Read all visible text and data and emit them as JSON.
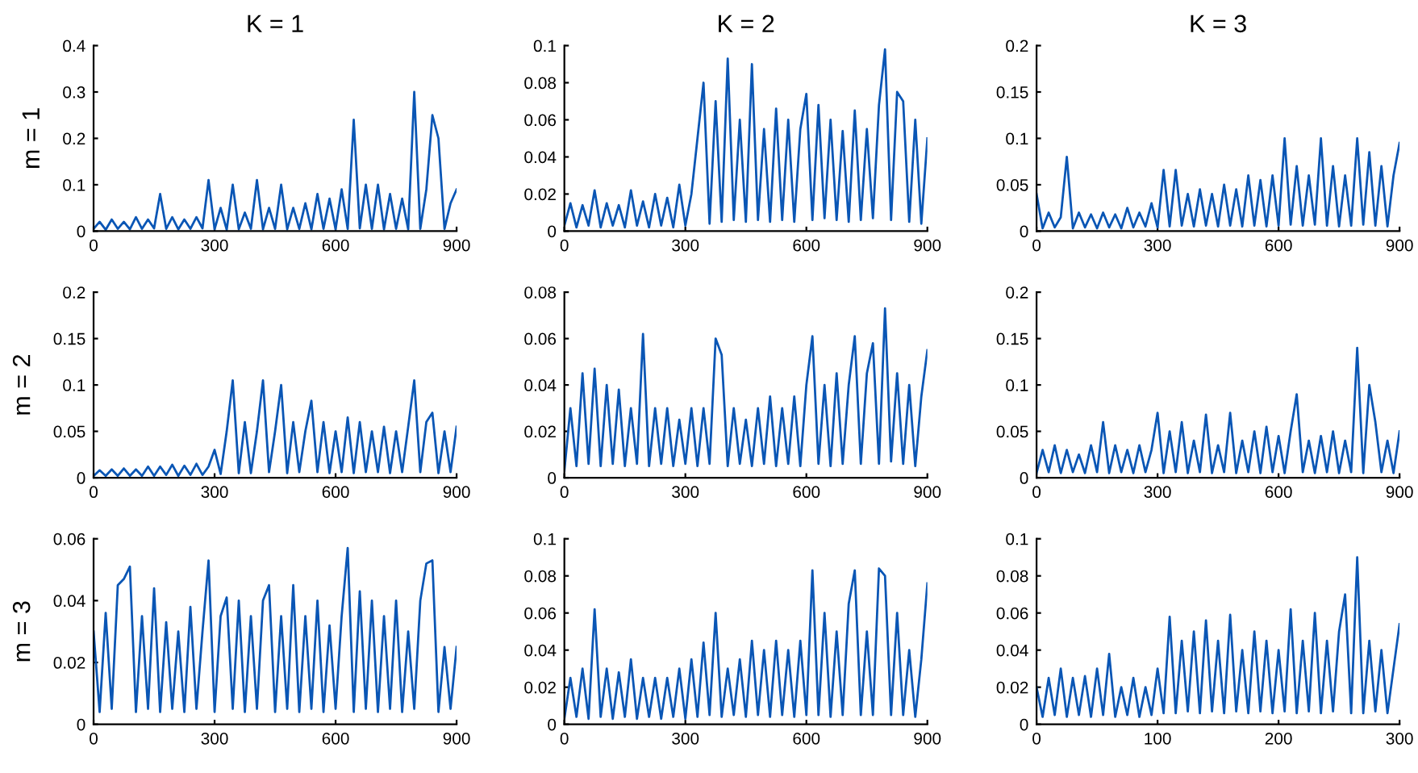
{
  "chart_data": [
    {
      "type": "line",
      "title": "K = 1",
      "ylabel": "m = 1",
      "xlim": [
        0,
        900
      ],
      "xticks": [
        0,
        300,
        600,
        900
      ],
      "ylim": [
        0,
        0.4
      ],
      "yticks": [
        0,
        0.1,
        0.2,
        0.3,
        0.4
      ],
      "x": [
        0,
        15,
        30,
        45,
        60,
        75,
        90,
        105,
        120,
        135,
        150,
        165,
        180,
        195,
        210,
        225,
        240,
        255,
        270,
        285,
        300,
        315,
        330,
        345,
        360,
        375,
        390,
        405,
        420,
        435,
        450,
        465,
        480,
        495,
        510,
        525,
        540,
        555,
        570,
        585,
        600,
        615,
        630,
        645,
        660,
        675,
        690,
        705,
        720,
        735,
        750,
        765,
        780,
        795,
        810,
        825,
        840,
        855,
        870,
        885,
        900
      ],
      "series": [
        {
          "color": "#0a56b5",
          "values": [
            0.005,
            0.02,
            0.003,
            0.025,
            0.005,
            0.02,
            0.004,
            0.03,
            0.005,
            0.025,
            0.006,
            0.08,
            0.005,
            0.03,
            0.004,
            0.025,
            0.005,
            0.03,
            0.006,
            0.11,
            0.004,
            0.05,
            0.003,
            0.1,
            0.004,
            0.04,
            0.005,
            0.11,
            0.004,
            0.05,
            0.005,
            0.1,
            0.004,
            0.05,
            0.005,
            0.06,
            0.004,
            0.08,
            0.005,
            0.07,
            0.004,
            0.09,
            0.005,
            0.24,
            0.006,
            0.1,
            0.005,
            0.1,
            0.004,
            0.08,
            0.005,
            0.07,
            0.004,
            0.3,
            0.005,
            0.09,
            0.25,
            0.2,
            0.005,
            0.06,
            0.09
          ]
        }
      ]
    },
    {
      "type": "line",
      "title": "K = 2",
      "xlim": [
        0,
        900
      ],
      "xticks": [
        0,
        300,
        600,
        900
      ],
      "ylim": [
        0,
        0.1
      ],
      "yticks": [
        0,
        0.02,
        0.04,
        0.06,
        0.08,
        0.1
      ],
      "x": [
        0,
        15,
        30,
        45,
        60,
        75,
        90,
        105,
        120,
        135,
        150,
        165,
        180,
        195,
        210,
        225,
        240,
        255,
        270,
        285,
        300,
        315,
        330,
        345,
        360,
        375,
        390,
        405,
        420,
        435,
        450,
        465,
        480,
        495,
        510,
        525,
        540,
        555,
        570,
        585,
        600,
        615,
        630,
        645,
        660,
        675,
        690,
        705,
        720,
        735,
        750,
        765,
        780,
        795,
        810,
        825,
        840,
        855,
        870,
        885,
        900
      ],
      "series": [
        {
          "color": "#0a56b5",
          "values": [
            0.003,
            0.015,
            0.002,
            0.014,
            0.003,
            0.022,
            0.002,
            0.015,
            0.003,
            0.014,
            0.002,
            0.022,
            0.003,
            0.016,
            0.002,
            0.02,
            0.003,
            0.018,
            0.002,
            0.025,
            0.003,
            0.02,
            0.05,
            0.08,
            0.004,
            0.07,
            0.005,
            0.093,
            0.006,
            0.06,
            0.005,
            0.09,
            0.006,
            0.055,
            0.005,
            0.066,
            0.006,
            0.06,
            0.005,
            0.055,
            0.074,
            0.006,
            0.068,
            0.007,
            0.06,
            0.006,
            0.054,
            0.005,
            0.065,
            0.006,
            0.055,
            0.007,
            0.068,
            0.098,
            0.006,
            0.075,
            0.07,
            0.005,
            0.06,
            0.004,
            0.05
          ]
        }
      ]
    },
    {
      "type": "line",
      "title": "K = 3",
      "xlim": [
        0,
        900
      ],
      "xticks": [
        0,
        300,
        600,
        900
      ],
      "ylim": [
        0,
        0.2
      ],
      "yticks": [
        0,
        0.05,
        0.1,
        0.15,
        0.2
      ],
      "x": [
        0,
        15,
        30,
        45,
        60,
        75,
        90,
        105,
        120,
        135,
        150,
        165,
        180,
        195,
        210,
        225,
        240,
        255,
        270,
        285,
        300,
        315,
        330,
        345,
        360,
        375,
        390,
        405,
        420,
        435,
        450,
        465,
        480,
        495,
        510,
        525,
        540,
        555,
        570,
        585,
        600,
        615,
        630,
        645,
        660,
        675,
        690,
        705,
        720,
        735,
        750,
        765,
        780,
        795,
        810,
        825,
        840,
        855,
        870,
        885,
        900
      ],
      "series": [
        {
          "color": "#0a56b5",
          "values": [
            0.04,
            0.003,
            0.02,
            0.004,
            0.015,
            0.08,
            0.003,
            0.02,
            0.004,
            0.018,
            0.003,
            0.02,
            0.004,
            0.018,
            0.003,
            0.025,
            0.004,
            0.02,
            0.005,
            0.03,
            0.004,
            0.066,
            0.005,
            0.066,
            0.006,
            0.04,
            0.005,
            0.045,
            0.006,
            0.04,
            0.005,
            0.05,
            0.006,
            0.045,
            0.005,
            0.06,
            0.006,
            0.055,
            0.005,
            0.06,
            0.006,
            0.1,
            0.007,
            0.07,
            0.006,
            0.06,
            0.007,
            0.1,
            0.006,
            0.07,
            0.005,
            0.06,
            0.006,
            0.1,
            0.007,
            0.085,
            0.006,
            0.07,
            0.005,
            0.06,
            0.095
          ]
        }
      ]
    },
    {
      "type": "line",
      "ylabel": "m = 2",
      "xlim": [
        0,
        900
      ],
      "xticks": [
        0,
        300,
        600,
        900
      ],
      "ylim": [
        0,
        0.2
      ],
      "yticks": [
        0,
        0.05,
        0.1,
        0.15,
        0.2
      ],
      "x": [
        0,
        15,
        30,
        45,
        60,
        75,
        90,
        105,
        120,
        135,
        150,
        165,
        180,
        195,
        210,
        225,
        240,
        255,
        270,
        285,
        300,
        315,
        330,
        345,
        360,
        375,
        390,
        405,
        420,
        435,
        450,
        465,
        480,
        495,
        510,
        525,
        540,
        555,
        570,
        585,
        600,
        615,
        630,
        645,
        660,
        675,
        690,
        705,
        720,
        735,
        750,
        765,
        780,
        795,
        810,
        825,
        840,
        855,
        870,
        885,
        900
      ],
      "series": [
        {
          "color": "#0a56b5",
          "values": [
            0.002,
            0.008,
            0.002,
            0.009,
            0.002,
            0.01,
            0.002,
            0.009,
            0.002,
            0.012,
            0.002,
            0.012,
            0.003,
            0.014,
            0.002,
            0.013,
            0.003,
            0.015,
            0.003,
            0.012,
            0.03,
            0.004,
            0.05,
            0.105,
            0.005,
            0.06,
            0.005,
            0.05,
            0.105,
            0.006,
            0.05,
            0.1,
            0.005,
            0.06,
            0.006,
            0.05,
            0.083,
            0.006,
            0.06,
            0.005,
            0.05,
            0.006,
            0.065,
            0.005,
            0.06,
            0.006,
            0.05,
            0.006,
            0.055,
            0.005,
            0.05,
            0.006,
            0.055,
            0.105,
            0.006,
            0.06,
            0.07,
            0.005,
            0.05,
            0.006,
            0.055
          ]
        }
      ]
    },
    {
      "type": "line",
      "xlim": [
        0,
        900
      ],
      "xticks": [
        0,
        300,
        600,
        900
      ],
      "ylim": [
        0,
        0.08
      ],
      "yticks": [
        0,
        0.02,
        0.04,
        0.06,
        0.08
      ],
      "x": [
        0,
        15,
        30,
        45,
        60,
        75,
        90,
        105,
        120,
        135,
        150,
        165,
        180,
        195,
        210,
        225,
        240,
        255,
        270,
        285,
        300,
        315,
        330,
        345,
        360,
        375,
        390,
        405,
        420,
        435,
        450,
        465,
        480,
        495,
        510,
        525,
        540,
        555,
        570,
        585,
        600,
        615,
        630,
        645,
        660,
        675,
        690,
        705,
        720,
        735,
        750,
        765,
        780,
        795,
        810,
        825,
        840,
        855,
        870,
        885,
        900
      ],
      "series": [
        {
          "color": "#0a56b5",
          "values": [
            0.003,
            0.03,
            0.005,
            0.045,
            0.006,
            0.047,
            0.005,
            0.04,
            0.006,
            0.038,
            0.005,
            0.03,
            0.006,
            0.062,
            0.005,
            0.03,
            0.006,
            0.03,
            0.005,
            0.025,
            0.006,
            0.03,
            0.005,
            0.03,
            0.006,
            0.06,
            0.053,
            0.005,
            0.03,
            0.006,
            0.025,
            0.005,
            0.03,
            0.006,
            0.035,
            0.005,
            0.03,
            0.006,
            0.035,
            0.005,
            0.04,
            0.061,
            0.006,
            0.04,
            0.005,
            0.045,
            0.006,
            0.04,
            0.061,
            0.006,
            0.045,
            0.058,
            0.006,
            0.073,
            0.007,
            0.045,
            0.006,
            0.04,
            0.005,
            0.035,
            0.055
          ]
        }
      ]
    },
    {
      "type": "line",
      "xlim": [
        0,
        900
      ],
      "xticks": [
        0,
        300,
        600,
        900
      ],
      "ylim": [
        0,
        0.2
      ],
      "yticks": [
        0,
        0.05,
        0.1,
        0.15,
        0.2
      ],
      "x": [
        0,
        15,
        30,
        45,
        60,
        75,
        90,
        105,
        120,
        135,
        150,
        165,
        180,
        195,
        210,
        225,
        240,
        255,
        270,
        285,
        300,
        315,
        330,
        345,
        360,
        375,
        390,
        405,
        420,
        435,
        450,
        465,
        480,
        495,
        510,
        525,
        540,
        555,
        570,
        585,
        600,
        615,
        630,
        645,
        660,
        675,
        690,
        705,
        720,
        735,
        750,
        765,
        780,
        795,
        810,
        825,
        840,
        855,
        870,
        885,
        900
      ],
      "series": [
        {
          "color": "#0a56b5",
          "values": [
            0.005,
            0.03,
            0.006,
            0.035,
            0.005,
            0.03,
            0.006,
            0.025,
            0.005,
            0.035,
            0.006,
            0.06,
            0.005,
            0.035,
            0.006,
            0.03,
            0.005,
            0.035,
            0.006,
            0.03,
            0.07,
            0.005,
            0.05,
            0.006,
            0.06,
            0.005,
            0.04,
            0.006,
            0.068,
            0.005,
            0.035,
            0.006,
            0.07,
            0.005,
            0.04,
            0.006,
            0.05,
            0.005,
            0.055,
            0.006,
            0.045,
            0.005,
            0.05,
            0.09,
            0.006,
            0.04,
            0.005,
            0.045,
            0.006,
            0.05,
            0.005,
            0.04,
            0.006,
            0.14,
            0.005,
            0.1,
            0.06,
            0.006,
            0.04,
            0.005,
            0.05
          ]
        }
      ]
    },
    {
      "type": "line",
      "ylabel": "m = 3",
      "xlim": [
        0,
        900
      ],
      "xticks": [
        0,
        300,
        600,
        900
      ],
      "ylim": [
        0,
        0.06
      ],
      "yticks": [
        0,
        0.02,
        0.04,
        0.06
      ],
      "x": [
        0,
        15,
        30,
        45,
        60,
        75,
        90,
        105,
        120,
        135,
        150,
        165,
        180,
        195,
        210,
        225,
        240,
        255,
        270,
        285,
        300,
        315,
        330,
        345,
        360,
        375,
        390,
        405,
        420,
        435,
        450,
        465,
        480,
        495,
        510,
        525,
        540,
        555,
        570,
        585,
        600,
        615,
        630,
        645,
        660,
        675,
        690,
        705,
        720,
        735,
        750,
        765,
        780,
        795,
        810,
        825,
        840,
        855,
        870,
        885,
        900
      ],
      "series": [
        {
          "color": "#0a56b5",
          "values": [
            0.03,
            0.004,
            0.036,
            0.005,
            0.045,
            0.047,
            0.051,
            0.004,
            0.035,
            0.005,
            0.044,
            0.004,
            0.033,
            0.005,
            0.03,
            0.004,
            0.038,
            0.005,
            0.03,
            0.053,
            0.004,
            0.035,
            0.041,
            0.005,
            0.04,
            0.004,
            0.035,
            0.005,
            0.04,
            0.045,
            0.004,
            0.035,
            0.005,
            0.045,
            0.004,
            0.035,
            0.005,
            0.04,
            0.004,
            0.032,
            0.005,
            0.035,
            0.057,
            0.004,
            0.043,
            0.005,
            0.04,
            0.004,
            0.035,
            0.005,
            0.04,
            0.004,
            0.03,
            0.005,
            0.04,
            0.052,
            0.053,
            0.004,
            0.025,
            0.005,
            0.025
          ]
        }
      ]
    },
    {
      "type": "line",
      "xlim": [
        0,
        900
      ],
      "xticks": [
        0,
        300,
        600,
        900
      ],
      "ylim": [
        0,
        0.1
      ],
      "yticks": [
        0,
        0.02,
        0.04,
        0.06,
        0.08,
        0.1
      ],
      "x": [
        0,
        15,
        30,
        45,
        60,
        75,
        90,
        105,
        120,
        135,
        150,
        165,
        180,
        195,
        210,
        225,
        240,
        255,
        270,
        285,
        300,
        315,
        330,
        345,
        360,
        375,
        390,
        405,
        420,
        435,
        450,
        465,
        480,
        495,
        510,
        525,
        540,
        555,
        570,
        585,
        600,
        615,
        630,
        645,
        660,
        675,
        690,
        705,
        720,
        735,
        750,
        765,
        780,
        795,
        810,
        825,
        840,
        855,
        870,
        885,
        900
      ],
      "series": [
        {
          "color": "#0a56b5",
          "values": [
            0.003,
            0.025,
            0.004,
            0.03,
            0.003,
            0.062,
            0.004,
            0.03,
            0.003,
            0.028,
            0.004,
            0.035,
            0.003,
            0.025,
            0.004,
            0.025,
            0.003,
            0.025,
            0.004,
            0.03,
            0.003,
            0.035,
            0.004,
            0.044,
            0.005,
            0.06,
            0.004,
            0.03,
            0.005,
            0.035,
            0.004,
            0.045,
            0.005,
            0.04,
            0.004,
            0.045,
            0.005,
            0.04,
            0.004,
            0.045,
            0.005,
            0.083,
            0.005,
            0.06,
            0.004,
            0.05,
            0.005,
            0.065,
            0.083,
            0.005,
            0.05,
            0.005,
            0.084,
            0.08,
            0.005,
            0.06,
            0.005,
            0.04,
            0.004,
            0.035,
            0.076
          ]
        }
      ]
    },
    {
      "type": "line",
      "xlim": [
        0,
        300
      ],
      "xticks": [
        0,
        100,
        200,
        300
      ],
      "ylim": [
        0,
        0.1
      ],
      "yticks": [
        0,
        0.02,
        0.04,
        0.06,
        0.08,
        0.1
      ],
      "x": [
        0,
        5,
        10,
        15,
        20,
        25,
        30,
        35,
        40,
        45,
        50,
        55,
        60,
        65,
        70,
        75,
        80,
        85,
        90,
        95,
        100,
        105,
        110,
        115,
        120,
        125,
        130,
        135,
        140,
        145,
        150,
        155,
        160,
        165,
        170,
        175,
        180,
        185,
        190,
        195,
        200,
        205,
        210,
        215,
        220,
        225,
        230,
        235,
        240,
        245,
        250,
        255,
        260,
        265,
        270,
        275,
        280,
        285,
        290,
        295,
        300
      ],
      "series": [
        {
          "color": "#0a56b5",
          "values": [
            0.02,
            0.004,
            0.025,
            0.005,
            0.03,
            0.004,
            0.025,
            0.005,
            0.026,
            0.004,
            0.03,
            0.005,
            0.038,
            0.004,
            0.02,
            0.005,
            0.025,
            0.004,
            0.02,
            0.005,
            0.03,
            0.006,
            0.058,
            0.006,
            0.045,
            0.007,
            0.05,
            0.006,
            0.056,
            0.007,
            0.045,
            0.006,
            0.059,
            0.007,
            0.04,
            0.006,
            0.05,
            0.007,
            0.045,
            0.006,
            0.04,
            0.007,
            0.062,
            0.006,
            0.045,
            0.007,
            0.06,
            0.006,
            0.045,
            0.007,
            0.05,
            0.07,
            0.006,
            0.09,
            0.006,
            0.045,
            0.007,
            0.04,
            0.006,
            0.03,
            0.054
          ]
        }
      ]
    }
  ]
}
